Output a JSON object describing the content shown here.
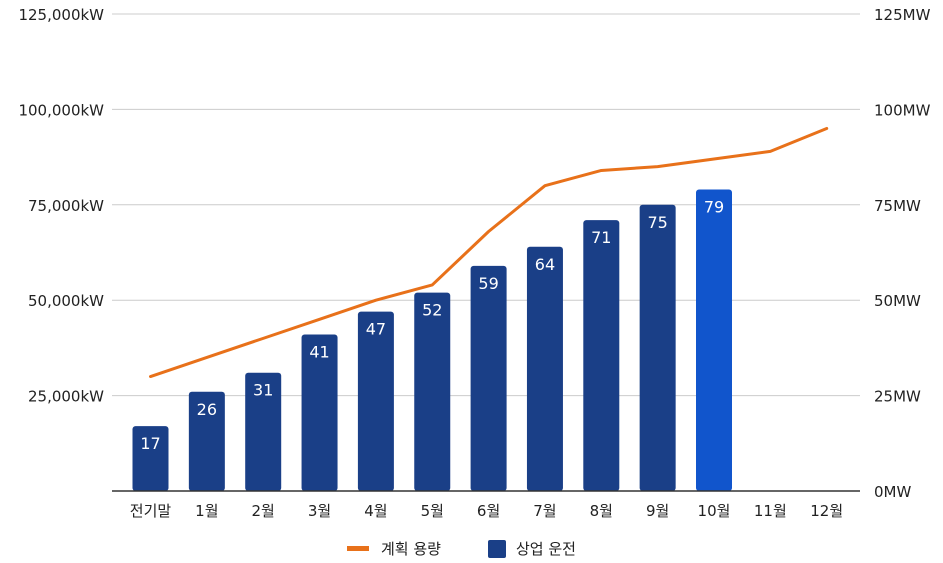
{
  "chart_data": {
    "type": "bar",
    "categories": [
      "전기말",
      "1월",
      "2월",
      "3월",
      "4월",
      "5월",
      "6월",
      "7월",
      "8월",
      "9월",
      "10월",
      "11월",
      "12월"
    ],
    "series": [
      {
        "name": "상업 운전",
        "type": "bar",
        "axis": "right",
        "unit": "MW",
        "values": [
          17,
          26,
          31,
          41,
          47,
          52,
          59,
          64,
          71,
          75,
          79,
          null,
          null
        ],
        "data_labels": [
          "17",
          "26",
          "31",
          "41",
          "47",
          "52",
          "59",
          "64",
          "71",
          "75",
          "79",
          "",
          ""
        ],
        "color": "#1a3f87",
        "highlight_color": "#1155cc",
        "highlight_index": 10
      },
      {
        "name": "계획 용량",
        "type": "line",
        "axis": "left",
        "unit": "kW",
        "values": [
          30000,
          35000,
          40000,
          45000,
          50000,
          54000,
          68000,
          80000,
          84000,
          85000,
          87000,
          89000,
          95000
        ],
        "color": "#e8711a"
      }
    ],
    "left_axis": {
      "ylim": [
        0,
        125000
      ],
      "ticks": [
        "",
        "25,000kW",
        "50,000kW",
        "75,000kW",
        "100,000kW",
        "125,000kW"
      ]
    },
    "right_axis": {
      "ylim": [
        0,
        125
      ],
      "ticks": [
        "0MW",
        "25MW",
        "50MW",
        "75MW",
        "100MW",
        "125MW"
      ]
    },
    "grid": true,
    "legend": {
      "position": "bottom",
      "items": [
        {
          "label": "계획 용량",
          "color": "#e8711a",
          "shape": "line"
        },
        {
          "label": "상업 운전",
          "color": "#1a3f87",
          "shape": "square"
        }
      ]
    }
  }
}
